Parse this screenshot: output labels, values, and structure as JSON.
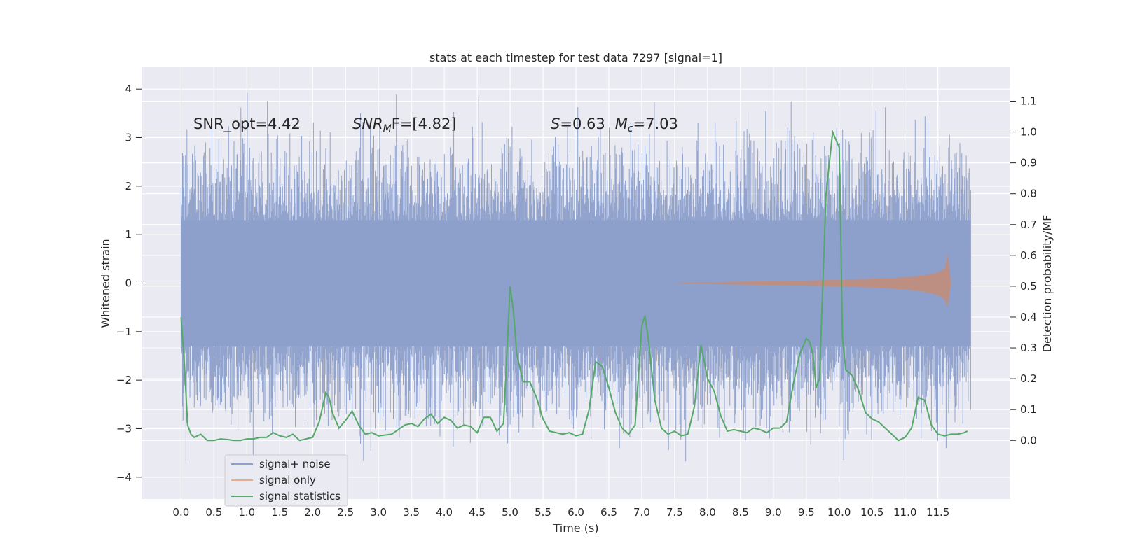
{
  "chart_data": {
    "type": "line",
    "title": "stats at each timestep for test data 7297 [signal=1]",
    "xlabel": "Time (s)",
    "ylabel": "Whitened strain",
    "y2label": "Detection probability/MF",
    "xlim": [
      -0.6,
      12.6
    ],
    "ylim": [
      -4.45,
      4.45
    ],
    "y2lim": [
      -0.19,
      1.21
    ],
    "xticks": [
      "0.0",
      "0.5",
      "1.0",
      "1.5",
      "2.0",
      "2.5",
      "3.0",
      "3.5",
      "4.0",
      "4.5",
      "5.0",
      "5.5",
      "6.0",
      "6.5",
      "7.0",
      "7.5",
      "8.0",
      "8.5",
      "9.0",
      "9.5",
      "10.0",
      "10.5",
      "11.0",
      "11.5"
    ],
    "yticks": [
      "4",
      "3",
      "2",
      "1",
      "0",
      "−1",
      "−2",
      "−3",
      "−4"
    ],
    "y2ticks": [
      "1.1",
      "1.0",
      "0.9",
      "0.8",
      "0.7",
      "0.6",
      "0.5",
      "0.4",
      "0.3",
      "0.2",
      "0.1",
      "0.0"
    ],
    "annotations": {
      "snr_opt": "SNR_opt=4.42",
      "snr_mf_base": "SNR",
      "snr_mf_sub": "M",
      "snr_mf_rest": "F=[4.82]",
      "s_sym": "S",
      "s_val": "=0.63",
      "mc_sym": "M",
      "mc_sub": "c",
      "mc_val": "=7.03"
    },
    "legend": {
      "position": "lower-left",
      "entries": [
        "signal+ noise",
        "signal only",
        "signal statistics"
      ]
    },
    "colors": {
      "noise": "#8da0cb",
      "signal": "#dd8452",
      "stats": "#55a868",
      "background": "#eaeaf2",
      "grid": "#ffffff"
    },
    "series": [
      {
        "name": "signal+ noise",
        "axis": "left",
        "description_values": {
          "t_start": 0.0,
          "t_end": 12.0,
          "core_amplitude": 1.3,
          "max_peak": 4.1,
          "min_peak": -4.1
        }
      },
      {
        "name": "signal only",
        "axis": "left",
        "envelope": {
          "x": [
            7.5,
            8.0,
            8.5,
            9.0,
            9.5,
            10.0,
            10.5,
            11.0,
            11.3,
            11.5,
            11.6,
            11.65,
            11.7
          ],
          "upper": [
            0.0,
            0.02,
            0.03,
            0.04,
            0.05,
            0.07,
            0.09,
            0.12,
            0.16,
            0.22,
            0.3,
            0.6,
            0.0
          ],
          "lower": [
            0.0,
            -0.02,
            -0.03,
            -0.04,
            -0.05,
            -0.07,
            -0.09,
            -0.13,
            -0.18,
            -0.25,
            -0.33,
            -0.5,
            0.0
          ]
        }
      },
      {
        "name": "signal statistics",
        "axis": "right",
        "x": [
          0.0,
          0.05,
          0.1,
          0.15,
          0.2,
          0.3,
          0.4,
          0.5,
          0.6,
          0.7,
          0.8,
          0.9,
          1.0,
          1.1,
          1.2,
          1.3,
          1.4,
          1.5,
          1.6,
          1.7,
          1.8,
          1.9,
          2.0,
          2.1,
          2.2,
          2.25,
          2.3,
          2.4,
          2.5,
          2.6,
          2.7,
          2.8,
          2.9,
          3.0,
          3.2,
          3.4,
          3.5,
          3.6,
          3.7,
          3.8,
          3.9,
          4.0,
          4.1,
          4.2,
          4.3,
          4.4,
          4.5,
          4.6,
          4.7,
          4.8,
          4.9,
          5.0,
          5.05,
          5.1,
          5.2,
          5.3,
          5.4,
          5.5,
          5.6,
          5.7,
          5.8,
          5.9,
          6.0,
          6.1,
          6.2,
          6.3,
          6.4,
          6.5,
          6.6,
          6.7,
          6.8,
          6.9,
          7.0,
          7.05,
          7.1,
          7.2,
          7.3,
          7.4,
          7.5,
          7.6,
          7.7,
          7.8,
          7.9,
          8.0,
          8.1,
          8.2,
          8.3,
          8.4,
          8.5,
          8.6,
          8.7,
          8.8,
          8.9,
          9.0,
          9.1,
          9.2,
          9.3,
          9.4,
          9.5,
          9.55,
          9.6,
          9.65,
          9.7,
          9.8,
          9.9,
          10.0,
          10.05,
          10.1,
          10.2,
          10.3,
          10.4,
          10.5,
          10.6,
          10.7,
          10.8,
          10.9,
          11.0,
          11.1,
          11.2,
          11.3,
          11.4,
          11.5,
          11.6,
          11.7,
          11.8,
          11.9,
          11.95
        ],
        "values": [
          0.4,
          0.25,
          0.05,
          0.02,
          0.01,
          0.02,
          0.0,
          0.0,
          0.005,
          0.003,
          0.0,
          0.0,
          0.005,
          0.005,
          0.01,
          0.01,
          0.025,
          0.015,
          0.01,
          0.02,
          0.0,
          0.005,
          0.01,
          0.06,
          0.155,
          0.14,
          0.09,
          0.04,
          0.065,
          0.095,
          0.05,
          0.02,
          0.025,
          0.015,
          0.02,
          0.05,
          0.055,
          0.045,
          0.07,
          0.085,
          0.055,
          0.075,
          0.065,
          0.04,
          0.05,
          0.045,
          0.025,
          0.075,
          0.075,
          0.03,
          0.055,
          0.5,
          0.42,
          0.28,
          0.19,
          0.19,
          0.14,
          0.07,
          0.03,
          0.025,
          0.02,
          0.025,
          0.015,
          0.02,
          0.1,
          0.255,
          0.24,
          0.17,
          0.09,
          0.04,
          0.02,
          0.05,
          0.37,
          0.405,
          0.33,
          0.13,
          0.04,
          0.02,
          0.03,
          0.015,
          0.02,
          0.11,
          0.31,
          0.2,
          0.16,
          0.08,
          0.03,
          0.035,
          0.03,
          0.025,
          0.04,
          0.035,
          0.025,
          0.04,
          0.04,
          0.06,
          0.18,
          0.28,
          0.33,
          0.32,
          0.28,
          0.17,
          0.2,
          0.8,
          1.0,
          0.95,
          0.33,
          0.23,
          0.21,
          0.16,
          0.09,
          0.07,
          0.06,
          0.04,
          0.02,
          0.0,
          0.01,
          0.04,
          0.14,
          0.13,
          0.05,
          0.02,
          0.015,
          0.02,
          0.02,
          0.025,
          0.03
        ]
      }
    ]
  }
}
